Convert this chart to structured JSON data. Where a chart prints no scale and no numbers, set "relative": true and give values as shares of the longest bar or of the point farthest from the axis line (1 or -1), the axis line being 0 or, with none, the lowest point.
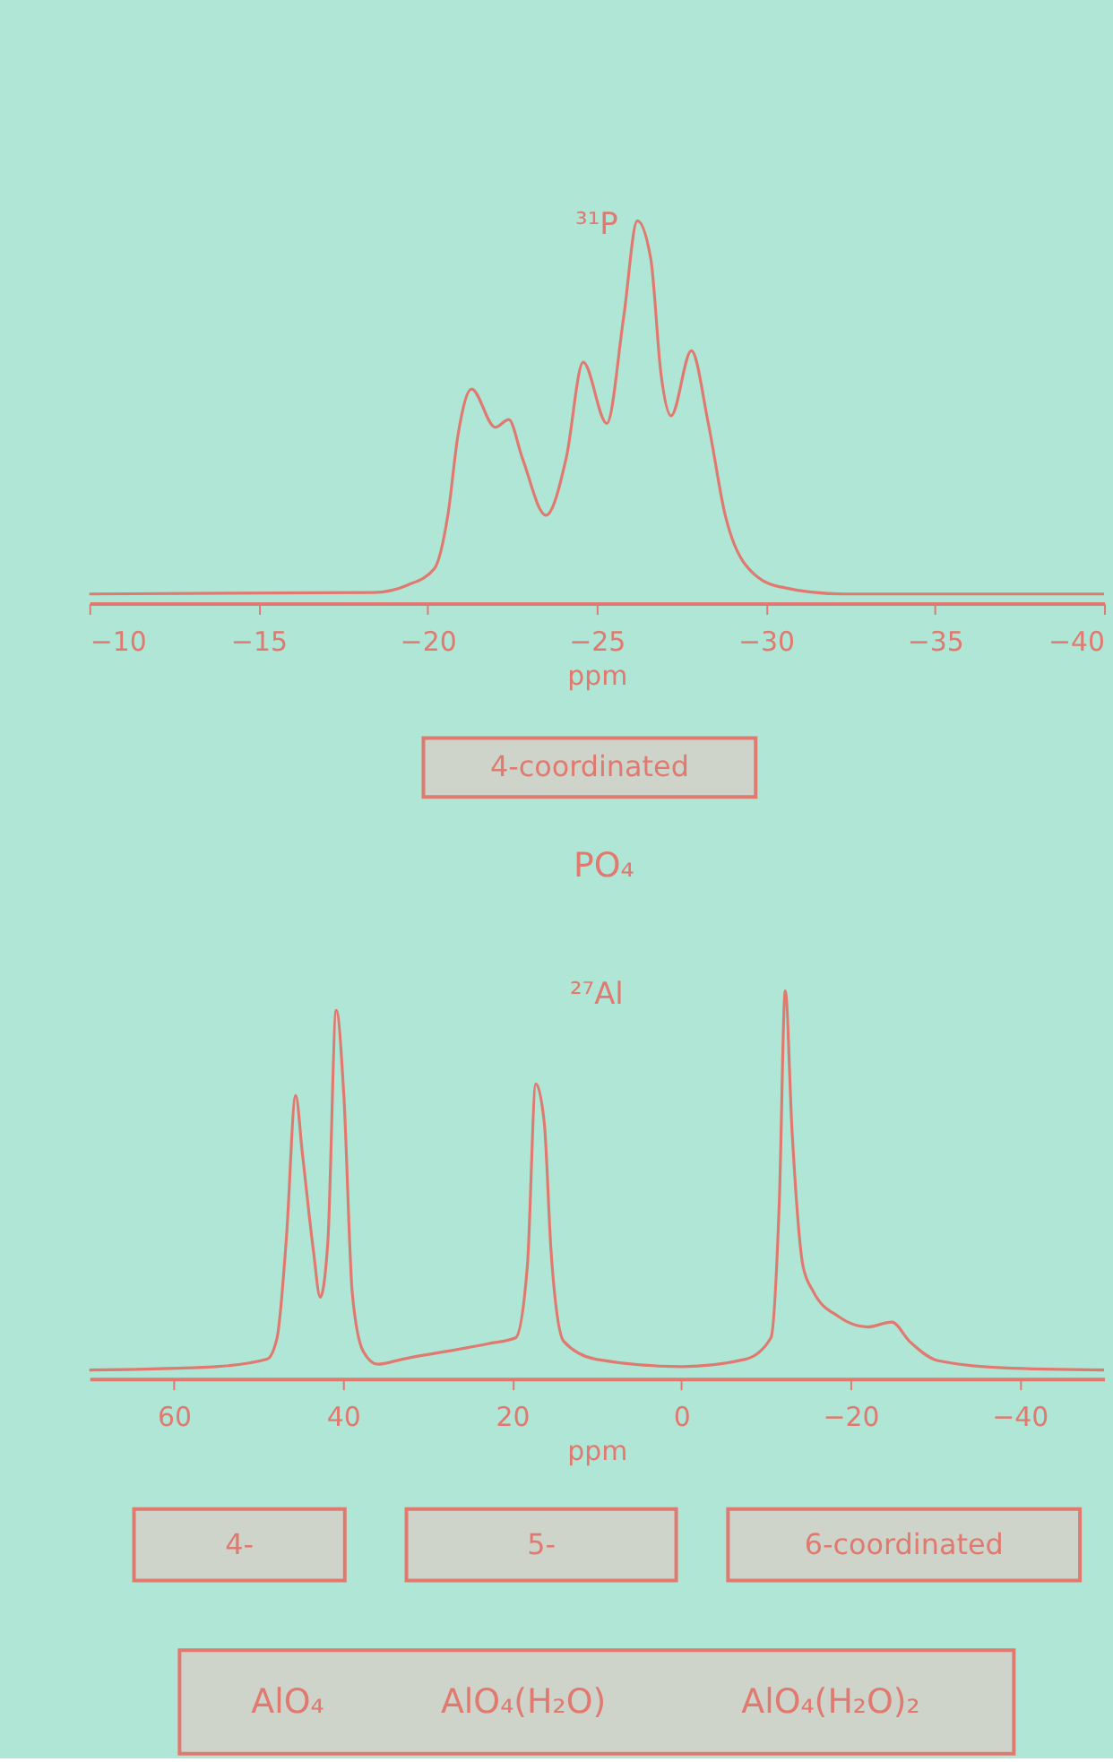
{
  "chart_data": [
    {
      "type": "line",
      "title": "³¹P",
      "xlabel": "ppm",
      "relative": true,
      "x": [
        -10,
        -18.4,
        -19.4,
        -20.2,
        -20.6,
        -20.9,
        -21.3,
        -22.0,
        -22.4,
        -22.8,
        -23.5,
        -24.1,
        -24.6,
        -25.3,
        -25.8,
        -26.2,
        -26.6,
        -26.9,
        -27.2,
        -27.8,
        -28.3,
        -28.8,
        -29.4,
        -30.4,
        -32.3,
        -40
      ],
      "series": [
        {
          "color": "#e07a70",
          "values": [
            0.024,
            0.028,
            0.047,
            0.09,
            0.23,
            0.44,
            0.56,
            0.46,
            0.48,
            0.38,
            0.23,
            0.38,
            0.63,
            0.47,
            0.75,
            1.0,
            0.9,
            0.6,
            0.49,
            0.66,
            0.47,
            0.23,
            0.1,
            0.043,
            0.024,
            0.024
          ]
        }
      ],
      "xlim": [
        -10,
        -40
      ],
      "xticks": [
        -10,
        -15,
        -20,
        -25,
        -30,
        -35,
        -40
      ],
      "grid": false,
      "annotations": [
        "4-coordinated",
        "PO₄"
      ]
    },
    {
      "type": "line",
      "title": "²⁷Al",
      "xlabel": "ppm",
      "relative": true,
      "x": [
        70,
        55,
        49,
        47.8,
        46.7,
        45.6,
        44.8,
        43.5,
        42.7,
        41.8,
        40.8,
        39.9,
        38.9,
        37.6,
        35.9,
        33.0,
        22.8,
        19.6,
        18.2,
        17.2,
        16.2,
        15.4,
        13.9,
        10.1,
        0,
        -7.6,
        -10.6,
        -11.6,
        -12.3,
        -13.1,
        -14.4,
        -15.6,
        -18.6,
        -22.0,
        -24.9,
        -27.0,
        -30.4,
        -38,
        -50
      ],
      "series": [
        {
          "color": "#e07a70",
          "values": [
            0.022,
            0.031,
            0.05,
            0.105,
            0.36,
            0.73,
            0.58,
            0.33,
            0.21,
            0.35,
            0.95,
            0.73,
            0.22,
            0.07,
            0.037,
            0.05,
            0.09,
            0.105,
            0.29,
            0.76,
            0.66,
            0.33,
            0.096,
            0.05,
            0.031,
            0.05,
            0.105,
            0.46,
            1.0,
            0.64,
            0.29,
            0.225,
            0.16,
            0.133,
            0.146,
            0.096,
            0.046,
            0.028,
            0.022
          ]
        }
      ],
      "xlim": [
        70,
        -50
      ],
      "xticks": [
        60,
        40,
        20,
        0,
        -20,
        -40
      ],
      "grid": false,
      "annotations": [
        "4-",
        "5-",
        "6-coordinated",
        "AlO₄",
        "AlO₄(H₂O)",
        "AlO₄(H₂O)₂"
      ]
    }
  ]
}
